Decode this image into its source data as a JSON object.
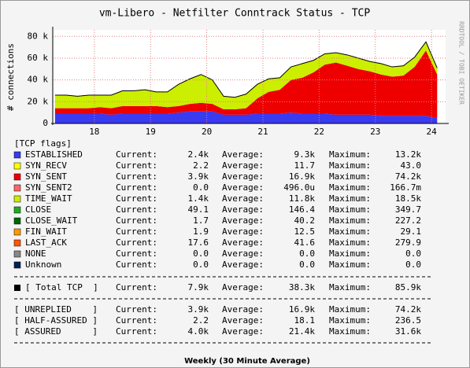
{
  "chart_data": {
    "type": "area",
    "stacked": true,
    "title": "vm-Libero - Netfilter Conntrack Status - TCP",
    "ylabel": "# connections",
    "watermark": "RRDTOOL / TOBI OETIKER",
    "footer": "Weekly (30 Minute Average)",
    "grid": true,
    "x": [
      17.3,
      17.5,
      17.7,
      17.9,
      18.1,
      18.3,
      18.5,
      18.7,
      18.9,
      19.1,
      19.3,
      19.5,
      19.7,
      19.9,
      20.1,
      20.3,
      20.5,
      20.7,
      20.9,
      21.1,
      21.3,
      21.5,
      21.7,
      21.9,
      22.1,
      22.3,
      22.5,
      22.7,
      22.9,
      23.1,
      23.3,
      23.5,
      23.7,
      23.9,
      24.1
    ],
    "xlim": [
      17.26,
      24.25
    ],
    "xticks": [
      18,
      19,
      20,
      21,
      22,
      23,
      24
    ],
    "ylim": [
      0,
      86000
    ],
    "yticks": [
      0,
      {
        "value": 20000,
        "label": "20 k"
      },
      {
        "value": 40000,
        "label": "40 k"
      },
      {
        "value": 60000,
        "label": "60 k"
      },
      {
        "value": 80000,
        "label": "80 k"
      }
    ],
    "legend_header": "[TCP flags]",
    "stat_labels": [
      "Current:",
      "Average:",
      "Maximum:"
    ],
    "series": [
      {
        "name": "ESTABLISHED",
        "color": "#3a3af0",
        "current": "2.4k",
        "average": "9.3k",
        "maximum": "13.2k",
        "values": [
          9000,
          9000,
          9000,
          9000,
          9000,
          8000,
          9000,
          9000,
          9000,
          9000,
          9000,
          10000,
          11000,
          11000,
          11000,
          8000,
          8000,
          8000,
          9000,
          9000,
          9000,
          10000,
          9000,
          9000,
          9000,
          8000,
          8000,
          8000,
          8000,
          7000,
          7000,
          7000,
          7000,
          7000,
          5000
        ]
      },
      {
        "name": "SYN_RECV",
        "color": "#ffff00",
        "current": "2.2",
        "average": "11.7",
        "maximum": "43.0"
      },
      {
        "name": "SYN_SENT",
        "color": "#ee0000",
        "current": "3.9k",
        "average": "16.9k",
        "maximum": "74.2k",
        "values": [
          5000,
          5000,
          5000,
          5000,
          6000,
          6000,
          7000,
          7000,
          7000,
          7000,
          6000,
          6000,
          7000,
          8000,
          7000,
          5000,
          5000,
          6000,
          14000,
          20000,
          22000,
          30000,
          33000,
          38000,
          45000,
          48000,
          45000,
          42000,
          40000,
          38000,
          36000,
          37000,
          45000,
          60000,
          40000
        ]
      },
      {
        "name": "SYN_SENT2",
        "color": "#ff6666",
        "current": "0.0",
        "average": "496.0u",
        "maximum": "166.7m"
      },
      {
        "name": "TIME_WAIT",
        "color": "#ccee00",
        "current": "1.4k",
        "average": "11.8k",
        "maximum": "18.5k",
        "values": [
          12000,
          12000,
          11000,
          12000,
          11000,
          12000,
          14000,
          14000,
          15000,
          13000,
          14000,
          20000,
          23000,
          26000,
          22000,
          12000,
          11000,
          13000,
          13000,
          12000,
          11000,
          12000,
          13000,
          11000,
          10000,
          9000,
          10000,
          10000,
          9000,
          10000,
          9000,
          9000,
          9000,
          8000,
          6000
        ]
      },
      {
        "name": "CLOSE",
        "color": "#22aa22",
        "current": "49.1",
        "average": "146.4",
        "maximum": "349.7"
      },
      {
        "name": "CLOSE_WAIT",
        "color": "#006600",
        "current": "1.7",
        "average": "40.2",
        "maximum": "227.2"
      },
      {
        "name": "FIN_WAIT",
        "color": "#ff9900",
        "current": "1.9",
        "average": "12.5",
        "maximum": "29.1"
      },
      {
        "name": "LAST_ACK",
        "color": "#ff5500",
        "current": "17.6",
        "average": "41.6",
        "maximum": "279.9"
      },
      {
        "name": "NONE",
        "color": "#888888",
        "current": "0.0",
        "average": "0.0",
        "maximum": "0.0"
      },
      {
        "name": "Unknown",
        "color": "#002255",
        "current": "0.0",
        "average": "0.0",
        "maximum": "0.0"
      }
    ],
    "total": {
      "name": "[ Total TCP  ]",
      "color": "#000000",
      "current": "7.9k",
      "average": "38.3k",
      "maximum": "85.9k"
    },
    "summary": [
      {
        "name": "[ UNREPLIED    ]",
        "current": "3.9k",
        "average": "16.9k",
        "maximum": "74.2k"
      },
      {
        "name": "[ HALF-ASSURED ]",
        "current": "2.2",
        "average": "18.1",
        "maximum": "236.5"
      },
      {
        "name": "[ ASSURED      ]",
        "current": "4.0k",
        "average": "21.4k",
        "maximum": "31.6k"
      }
    ]
  }
}
